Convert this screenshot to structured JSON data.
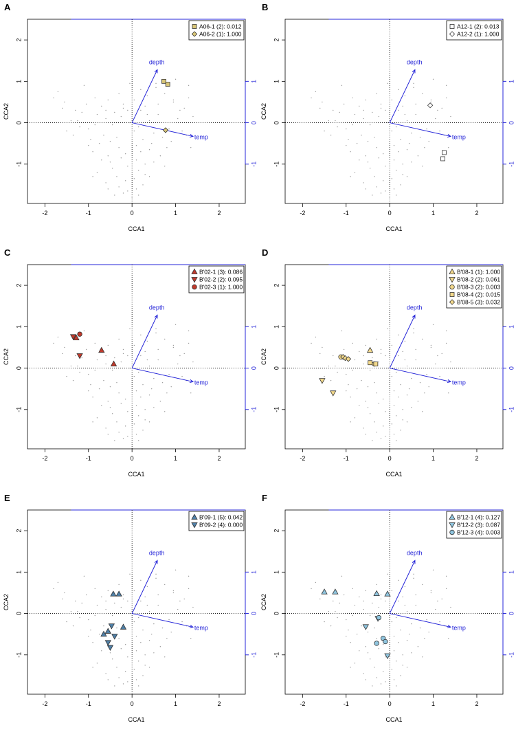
{
  "figure": {
    "blue": "#2424d8",
    "dot_color": "#9a9a9a",
    "axis_labels": {
      "x": "CCA1",
      "y": "CCA2"
    },
    "x_ticks": [
      -2,
      -1,
      0,
      1,
      2
    ],
    "y_ticks": [
      -1,
      0,
      1,
      2
    ],
    "right_ticks": [
      -1,
      0,
      1
    ],
    "vectors": [
      {
        "label": "depth",
        "x": 0.58,
        "y": 1.28
      },
      {
        "label": "temp",
        "x": 1.4,
        "y": -0.33
      }
    ],
    "site_points": {
      "x": [
        -1.7,
        -1.55,
        -1.3,
        -1.25,
        -1.1,
        -0.85,
        -0.7,
        -0.55,
        -0.3,
        -0.2,
        -0.1,
        0.05,
        0.2,
        0.3,
        0.35,
        0.55,
        0.75,
        1.0,
        1.1,
        1.3,
        -1.5,
        -1.2,
        -1.0,
        -0.8,
        -0.6,
        -0.45,
        -0.25,
        -0.05,
        0.15,
        0.4,
        0.6,
        0.85,
        1.05,
        1.25,
        1.4,
        -0.95,
        -0.65,
        -0.35,
        0.05,
        0.5,
        -1.6,
        -1.35,
        -1.05,
        -0.75,
        -0.5,
        -0.3,
        0.1,
        0.25,
        0.45,
        0.7,
        0.9,
        1.15,
        1.35,
        -0.9,
        -0.55,
        -0.15,
        0.2,
        0.4,
        0.65,
        0.8,
        -1.4,
        -1.15,
        -0.85,
        -0.6,
        -0.4,
        -0.2,
        0.0,
        0.2,
        0.35,
        0.6,
        0.95,
        1.2,
        -1.0,
        -0.7,
        -0.5,
        -0.25,
        0.1,
        0.3,
        0.5,
        0.75,
        -0.8,
        -0.45,
        -0.1,
        0.15,
        0.3,
        -0.9,
        -0.6,
        -0.35,
        -0.15,
        0.05,
        0.25,
        0.4,
        -0.55,
        -0.3,
        -0.1,
        0.1,
        -0.4,
        -0.2,
        0.0,
        0.15,
        -1.8,
        -0.05,
        0.55,
        0.95,
        1.3
      ],
      "y": [
        0.75,
        0.5,
        0.3,
        0.05,
        0.9,
        0.6,
        0.4,
        0.55,
        0.7,
        0.45,
        0.3,
        0.55,
        0.8,
        0.4,
        0.65,
        0.95,
        0.7,
        1.05,
        0.3,
        0.6,
        -0.2,
        -0.1,
        -0.15,
        0.2,
        0.1,
        -0.05,
        0.15,
        0.0,
        -0.1,
        0.05,
        0.2,
        -0.15,
        0.1,
        -0.3,
        0.15,
        -0.4,
        -0.3,
        -0.35,
        -0.2,
        -0.25,
        0.35,
        -0.3,
        0.45,
        -0.5,
        -0.45,
        -0.6,
        -0.55,
        -0.4,
        -0.5,
        -0.35,
        -0.45,
        -0.2,
        -0.6,
        -0.7,
        -0.8,
        -0.75,
        -0.7,
        -0.65,
        -0.8,
        -0.6,
        0.05,
        0.25,
        -0.05,
        0.3,
        0.25,
        0.35,
        0.15,
        0.3,
        0.2,
        0.45,
        0.5,
        0.35,
        -0.55,
        -0.9,
        -0.95,
        -0.85,
        -0.9,
        -1.0,
        -0.95,
        -1.05,
        -1.2,
        -1.1,
        -1.05,
        -1.15,
        -1.25,
        -1.3,
        -1.45,
        -1.3,
        -1.4,
        -1.35,
        -1.5,
        -1.3,
        -1.6,
        -1.55,
        -1.65,
        -1.6,
        -1.75,
        -1.7,
        -1.8,
        -1.75,
        0.6,
        0.95,
        0.85,
        0.55,
        0.9
      ]
    }
  },
  "chart_data": [
    {
      "type": "scatter",
      "panel_label": "A",
      "xlabel": "CCA1",
      "ylabel": "CCA2",
      "xlim": [
        -2.4,
        2.6
      ],
      "ylim": [
        -1.95,
        2.5
      ],
      "series": [
        {
          "name": "A06-1 (2): 0.012",
          "marker": "square",
          "color": "#d8c577",
          "x": [
            0.73,
            0.82
          ],
          "y": [
            1.0,
            0.93
          ]
        },
        {
          "name": "A06-2 (1): 1.000",
          "marker": "diamond",
          "color": "#d8c577",
          "x": [
            0.77
          ],
          "y": [
            -0.18
          ]
        }
      ]
    },
    {
      "type": "scatter",
      "panel_label": "B",
      "xlabel": "CCA1",
      "ylabel": "CCA2",
      "xlim": [
        -2.4,
        2.6
      ],
      "ylim": [
        -1.95,
        2.5
      ],
      "series": [
        {
          "name": "A12-1 (2): 0.013",
          "marker": "square",
          "color": "#ffffff",
          "x": [
            1.25,
            1.22
          ],
          "y": [
            -0.72,
            -0.87
          ]
        },
        {
          "name": "A12-2 (1): 1.000",
          "marker": "diamond",
          "color": "#ffffff",
          "x": [
            0.93
          ],
          "y": [
            0.42
          ]
        }
      ]
    },
    {
      "type": "scatter",
      "panel_label": "C",
      "xlabel": "CCA1",
      "ylabel": "CCA2",
      "xlim": [
        -2.4,
        2.6
      ],
      "ylim": [
        -1.95,
        2.5
      ],
      "series": [
        {
          "name": "B'02-1 (3): 0.086",
          "marker": "triangle-up",
          "color": "#c0392b",
          "x": [
            -1.28,
            -0.7,
            -0.42
          ],
          "y": [
            0.73,
            0.43,
            0.1
          ]
        },
        {
          "name": "B'02-2 (2): 0.095",
          "marker": "triangle-down",
          "color": "#c0392b",
          "x": [
            -1.35,
            -1.2
          ],
          "y": [
            0.76,
            0.3
          ]
        },
        {
          "name": "B'02-3 (1): 1.000",
          "marker": "circle",
          "color": "#c0392b",
          "x": [
            -1.2
          ],
          "y": [
            0.82
          ]
        }
      ]
    },
    {
      "type": "scatter",
      "panel_label": "D",
      "xlabel": "CCA1",
      "ylabel": "CCA2",
      "xlim": [
        -2.4,
        2.6
      ],
      "ylim": [
        -1.95,
        2.5
      ],
      "series": [
        {
          "name": "B'08-1 (1): 1.000",
          "marker": "triangle-up",
          "color": "#f3d98b",
          "x": [
            -0.45
          ],
          "y": [
            0.43
          ]
        },
        {
          "name": "B'08-2 (2): 0.061",
          "marker": "triangle-down",
          "color": "#f3d98b",
          "x": [
            -1.55,
            -1.3
          ],
          "y": [
            -0.3,
            -0.6
          ]
        },
        {
          "name": "B'08-3 (2): 0.003",
          "marker": "circle",
          "color": "#f3d98b",
          "x": [
            -1.12,
            -0.35
          ],
          "y": [
            0.27,
            0.1
          ]
        },
        {
          "name": "B'08-4 (2): 0.015",
          "marker": "square",
          "color": "#f3d98b",
          "x": [
            -0.45,
            -0.32
          ],
          "y": [
            0.13,
            0.1
          ]
        },
        {
          "name": "B'08-5 (3): 0.032",
          "marker": "diamond",
          "color": "#f3d98b",
          "x": [
            -1.07,
            -1.02,
            -0.95
          ],
          "y": [
            0.27,
            0.24,
            0.22
          ]
        }
      ]
    },
    {
      "type": "scatter",
      "panel_label": "E",
      "xlabel": "CCA1",
      "ylabel": "CCA2",
      "xlim": [
        -2.4,
        2.6
      ],
      "ylim": [
        -1.95,
        2.5
      ],
      "series": [
        {
          "name": "B'09-1 (5): 0.042",
          "marker": "triangle-up",
          "color": "#4f7fa6",
          "x": [
            -0.43,
            -0.3,
            -0.65,
            -0.55,
            -0.2
          ],
          "y": [
            0.47,
            0.47,
            -0.5,
            -0.43,
            -0.33
          ]
        },
        {
          "name": "B'09-2 (4): 0.000",
          "marker": "triangle-down",
          "color": "#4f7fa6",
          "x": [
            -0.47,
            -0.4,
            -0.55,
            -0.5
          ],
          "y": [
            -0.3,
            -0.55,
            -0.7,
            -0.82
          ]
        }
      ]
    },
    {
      "type": "scatter",
      "panel_label": "F",
      "xlabel": "CCA1",
      "ylabel": "CCA2",
      "xlim": [
        -2.4,
        2.6
      ],
      "ylim": [
        -1.95,
        2.5
      ],
      "series": [
        {
          "name": "B'12-1 (4): 0.127",
          "marker": "triangle-up",
          "color": "#8ec4de",
          "x": [
            -1.5,
            -1.25,
            -0.3,
            -0.05
          ],
          "y": [
            0.52,
            0.52,
            0.48,
            0.47
          ]
        },
        {
          "name": "B'12-2 (3): 0.087",
          "marker": "triangle-down",
          "color": "#8ec4de",
          "x": [
            -0.27,
            -0.55,
            -0.05
          ],
          "y": [
            -0.12,
            -0.32,
            -1.02
          ]
        },
        {
          "name": "B'12-3 (4): 0.003",
          "marker": "circle",
          "color": "#8ec4de",
          "x": [
            -0.25,
            -0.3,
            -0.15,
            -0.1
          ],
          "y": [
            -0.1,
            -0.72,
            -0.6,
            -0.68
          ]
        }
      ]
    }
  ]
}
